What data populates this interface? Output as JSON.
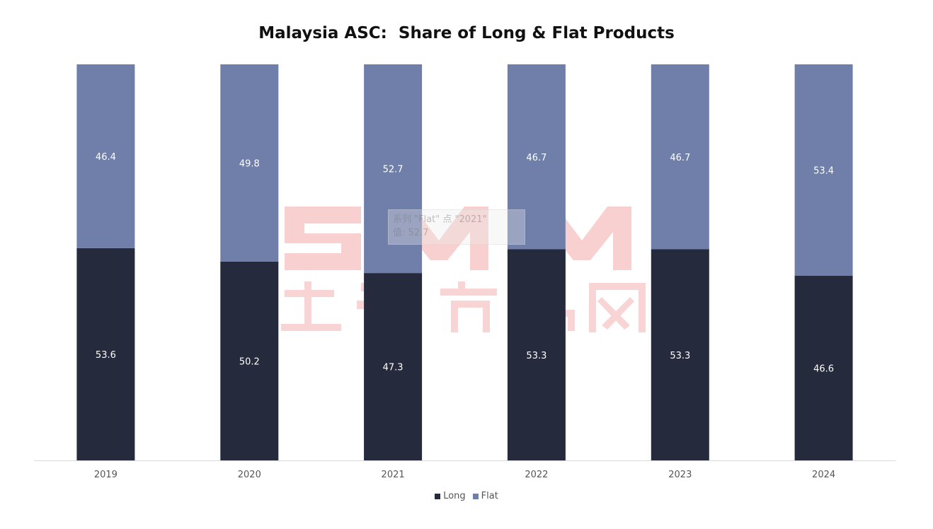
{
  "chart_data": {
    "type": "bar",
    "stacked": true,
    "title": "Malaysia ASC:  Share of Long & Flat Products",
    "categories": [
      "2019",
      "2020",
      "2021",
      "2022",
      "2023",
      "2024"
    ],
    "series": [
      {
        "name": "Long",
        "color": "#252a3d",
        "values": [
          53.6,
          50.2,
          47.3,
          53.3,
          53.3,
          46.6
        ]
      },
      {
        "name": "Flat",
        "color": "#6f7fa9",
        "values": [
          46.4,
          49.8,
          52.7,
          46.7,
          46.7,
          53.4
        ]
      }
    ],
    "ylim": [
      0,
      100
    ],
    "grid": false,
    "legend": "bottom",
    "data_labels": true
  },
  "watermark": {
    "text": "SMM 上海有色网",
    "color": "#f7c9c9"
  },
  "tooltip": {
    "line1": "系列 \"Flat\" 点 \"2021\"",
    "line2": "值: 52.7"
  }
}
